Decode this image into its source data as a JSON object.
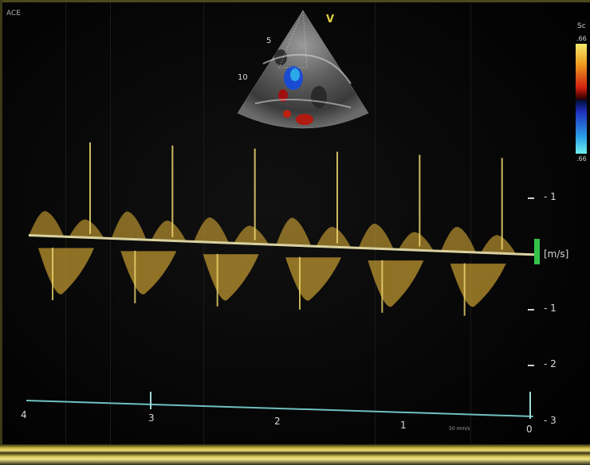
{
  "mode_label": "ACE",
  "scale_label": "Sc",
  "color_scale": {
    "top": ".66",
    "bottom": ".66"
  },
  "sector": {
    "depth_5": "5",
    "depth_10": "10",
    "orient_mark": "V"
  },
  "velocity_scale": {
    "unit": "[m/s]",
    "upper_1": "- 1",
    "lower_1": "- 1",
    "lower_2": "- 2",
    "lower_3": "- 3"
  },
  "time_axis": {
    "t4": "4",
    "t3": "3",
    "t2": "2",
    "t1": "1",
    "t0": "0",
    "sweep": "50 mm/s"
  },
  "colors": {
    "spectrum": "#e8b838",
    "baseline": "#d9d2a0",
    "time_axis": "#6fc0c0",
    "marker": "#35c24a"
  },
  "spectral_beats": [
    {
      "forward_peak": 0.45,
      "reverse_peak": 0.75
    },
    {
      "forward_peak": 0.5,
      "reverse_peak": 0.7
    },
    {
      "forward_peak": 0.45,
      "reverse_peak": 0.75
    },
    {
      "forward_peak": 0.5,
      "reverse_peak": 0.7
    },
    {
      "forward_peak": 0.45,
      "reverse_peak": 0.75
    },
    {
      "forward_peak": 0.45,
      "reverse_peak": 0.7
    }
  ]
}
